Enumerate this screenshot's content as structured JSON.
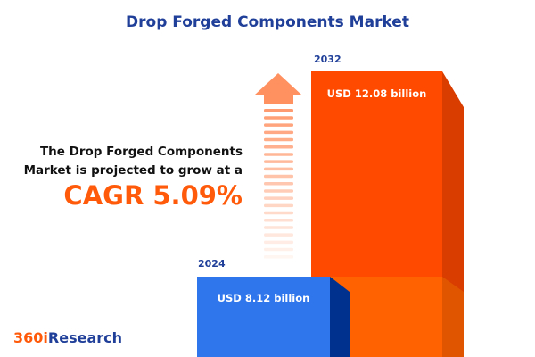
{
  "title": "Drop Forged Components Market",
  "description_line1": "The Drop Forged Components",
  "description_line2": "Market is projected to grow at a",
  "cagr_text": "CAGR 5.09%",
  "logo": {
    "prefix": "360i",
    "suffix": "Research"
  },
  "colors": {
    "bar_2024": "#2f76ec",
    "bar_2032": "#ff4a00",
    "title": "#1f3f99",
    "accent": "#ff5a0a"
  },
  "chart_data": {
    "type": "bar",
    "categories": [
      "2024",
      "2032"
    ],
    "values": [
      8.12,
      12.08
    ],
    "value_labels": [
      "USD 8.12 billion",
      "USD 12.08 billion"
    ],
    "unit": "USD billion",
    "cagr_percent": 5.09
  }
}
